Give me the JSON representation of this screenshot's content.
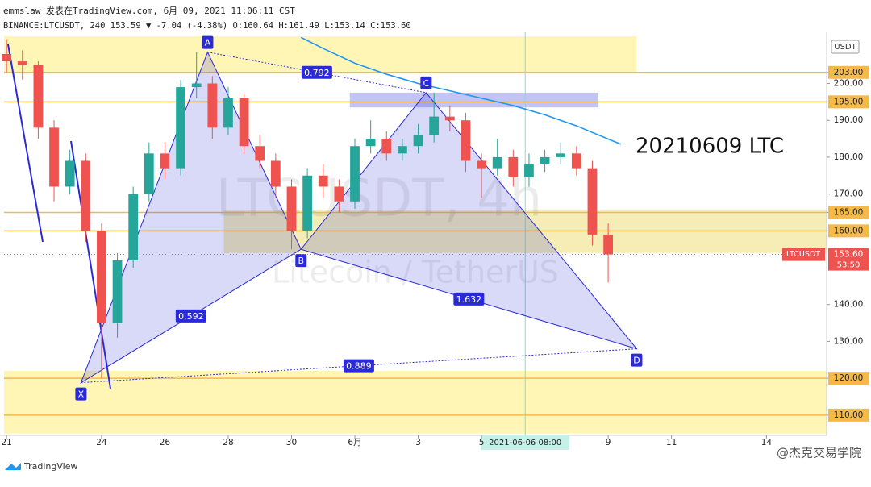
{
  "header": {
    "author_line": "emmslaw 发表在TradingView.com, 6月 09, 2021 11:06:11 CST",
    "symbol_line": "BINANCE:LTCUSDT, 240 153.59 ▼ -7.04 (-4.38%) O:160.64 H:161.49 L:153.14 C:153.60"
  },
  "footer": {
    "brand": "TradingView",
    "watermark": "@杰克交易学院"
  },
  "chart_data": {
    "type": "candlestick",
    "annotation": "20210609 LTC",
    "watermark_title": "LTCUSDT, 4h",
    "watermark_subtitle": "Litecoin / TetherUS",
    "currency": "USDT",
    "up_color": "#26a69a",
    "down_color": "#ef5350",
    "x": [
      0,
      0.5,
      1,
      1.5,
      2,
      2.5,
      3,
      3.5,
      4,
      4.5,
      5,
      5.5,
      6,
      6.5,
      7,
      7.5,
      8,
      8.5,
      9,
      9.5,
      10,
      10.5,
      11,
      11.5,
      12,
      12.5,
      13,
      13.5,
      14,
      14.5,
      15,
      15.5,
      16,
      16.5,
      17,
      17.5,
      18,
      18.5,
      19
    ],
    "open": [
      208,
      206,
      205,
      188,
      172,
      179,
      160,
      135,
      152,
      170,
      181,
      177,
      199,
      200,
      188,
      196,
      183,
      179,
      172,
      160,
      175,
      172,
      168,
      183,
      185,
      181,
      183,
      186,
      191,
      190,
      179,
      177,
      180,
      174.5,
      178,
      180,
      181,
      177,
      159
    ],
    "high": [
      212,
      209,
      206,
      190,
      182,
      181,
      162,
      154,
      172,
      184,
      184,
      201,
      208.5,
      202,
      199,
      197,
      186,
      181,
      174,
      177,
      178,
      174,
      185,
      190,
      187,
      185,
      189,
      197.5,
      194,
      192,
      181,
      185,
      182,
      181,
      182,
      184,
      183,
      179,
      162
    ],
    "low": [
      203,
      201,
      185,
      168,
      170,
      157,
      120,
      131,
      150,
      168,
      174,
      175,
      196,
      185,
      186,
      181,
      177,
      169,
      155,
      158,
      169,
      165,
      166,
      181,
      179,
      179,
      181,
      184,
      187,
      176,
      169,
      175,
      172,
      172,
      176,
      178,
      175,
      156,
      146
    ],
    "close": [
      206,
      205,
      188,
      172,
      179,
      160,
      135,
      152,
      170,
      181,
      177,
      199,
      200,
      188,
      196,
      183,
      179,
      172,
      160,
      175,
      172,
      168,
      183,
      185,
      181,
      183,
      186,
      191,
      190,
      179,
      177,
      180,
      174.5,
      178,
      180,
      181,
      177,
      159,
      153.6
    ],
    "xlim": [
      -0.08,
      25.9
    ],
    "ylim": [
      104.5,
      212.8
    ],
    "xticks": [
      {
        "value": 0,
        "label": "21"
      },
      {
        "value": 3,
        "label": "24"
      },
      {
        "value": 5,
        "label": "26"
      },
      {
        "value": 7,
        "label": "28"
      },
      {
        "value": 9,
        "label": "30"
      },
      {
        "value": 11,
        "label": "6月"
      },
      {
        "value": 13,
        "label": "3"
      },
      {
        "value": 15,
        "label": "5"
      },
      {
        "value": 19,
        "label": "9"
      },
      {
        "value": 21,
        "label": "11"
      },
      {
        "value": 24,
        "label": "14"
      }
    ],
    "yticks": [
      {
        "value": 203,
        "label": "203.00"
      },
      {
        "value": 200,
        "label": "200.00"
      },
      {
        "value": 195,
        "label": "195.00"
      },
      {
        "value": 190,
        "label": "190.00"
      },
      {
        "value": 180,
        "label": "180.00"
      },
      {
        "value": 170,
        "label": "170.00"
      },
      {
        "value": 165,
        "label": "165.00"
      },
      {
        "value": 160,
        "label": "160.00"
      },
      {
        "value": 140,
        "label": "140.00"
      },
      {
        "value": 130,
        "label": "130.00"
      },
      {
        "value": 120,
        "label": "120.00"
      },
      {
        "value": 110,
        "label": "110.00"
      }
    ],
    "levels": [
      203,
      195,
      165,
      160,
      120,
      110
    ],
    "level_color": "#f5b94a",
    "zones": [
      {
        "x": [
          -0.08,
          19.9
        ],
        "y": [
          203,
          212.8
        ],
        "color": "#fff3a8"
      },
      {
        "x": [
          6.86,
          25.9
        ],
        "y": [
          154,
          165.5
        ],
        "color": "#f3eaa8"
      },
      {
        "x": [
          -0.08,
          25.9
        ],
        "y": [
          105,
          122
        ],
        "color": "#fff3a8"
      },
      {
        "x": [
          10.84,
          18.67
        ],
        "y": [
          193.5,
          197.5
        ],
        "color": "#b9b9f2"
      }
    ],
    "moving_average": {
      "color": "#2196f3",
      "x": [
        9.3,
        10,
        11,
        12,
        13,
        14,
        15,
        16,
        17,
        18,
        19.4
      ],
      "values": [
        212.5,
        209.5,
        205.5,
        202.5,
        200,
        198,
        196,
        194,
        191.5,
        188.5,
        183.5
      ]
    },
    "pattern": {
      "color": "#2a2ad8",
      "points": [
        {
          "label": "X",
          "x": 2.35,
          "y": 118.8
        },
        {
          "label": "A",
          "x": 6.35,
          "y": 208.5
        },
        {
          "label": "B",
          "x": 9.3,
          "y": 155
        },
        {
          "label": "C",
          "x": 13.25,
          "y": 197.5
        },
        {
          "label": "D",
          "x": 19.9,
          "y": 128
        }
      ],
      "ratios": [
        0.792,
        0.592,
        1.632,
        0.889
      ]
    },
    "price_tag": {
      "symbol": "LTCUSDT",
      "price": {
        "value": 153.6,
        "label": "153.60"
      },
      "countdown": "53:50"
    },
    "crosshair": {
      "value": 16.38,
      "label": "2021-06-06  08:00"
    }
  }
}
